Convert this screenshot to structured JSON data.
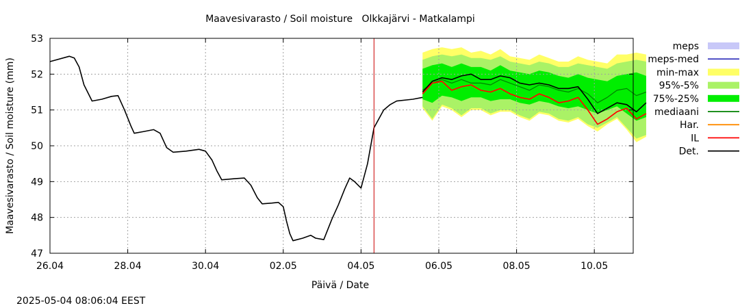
{
  "chart_data": {
    "type": "line",
    "title": "Maavesivarasto / Soil moisture   Olkkajärvi - Matkalampi",
    "xlabel": "Päivä / Date",
    "ylabel": "Maavesivarasto / Soil moisture (mm)",
    "timestamp": "2025-05-04 08:06:04 EEST",
    "x_unit": "day of month (April 26 – May 11, 2025)",
    "xlim": [
      "2025-04-26",
      "2025-05-11"
    ],
    "ylim": [
      47,
      53
    ],
    "y_ticks": [
      "47",
      "48",
      "49",
      "50",
      "51",
      "52",
      "53"
    ],
    "x_ticks": [
      {
        "date": "2025-04-26",
        "label": "26.04"
      },
      {
        "date": "2025-04-28",
        "label": "28.04"
      },
      {
        "date": "2025-04-30",
        "label": "30.04"
      },
      {
        "date": "2025-05-02",
        "label": "02.05"
      },
      {
        "date": "2025-05-04",
        "label": "04.05"
      },
      {
        "date": "2025-05-06",
        "label": "06.05"
      },
      {
        "date": "2025-05-08",
        "label": "08.05"
      },
      {
        "date": "2025-05-10",
        "label": "10.05"
      }
    ],
    "grid": true,
    "legend_position": "right",
    "forecast_start": "2025-05-04 08:00",
    "legend": [
      {
        "label": "meps",
        "kind": "band",
        "color": "#c8c8f8"
      },
      {
        "label": "meps-med",
        "kind": "line",
        "color": "#4040c0"
      },
      {
        "label": "min-max",
        "kind": "band",
        "color": "#ffff66"
      },
      {
        "label": "95%-5%",
        "kind": "band",
        "color": "#aaf266"
      },
      {
        "label": "75%-25%",
        "kind": "band",
        "color": "#00ee00"
      },
      {
        "label": "mediaani",
        "kind": "line",
        "color": "#008000"
      },
      {
        "label": "Har.",
        "kind": "line",
        "color": "#ff8c00"
      },
      {
        "label": "IL",
        "kind": "line",
        "color": "#ff0000"
      },
      {
        "label": "Det.",
        "kind": "line",
        "color": "#000000"
      }
    ],
    "observed": {
      "name": "Det.",
      "color": "#000000",
      "points": [
        [
          "2025-04-26 00:00",
          52.35
        ],
        [
          "2025-04-26 12:00",
          52.5
        ],
        [
          "2025-04-26 15:00",
          52.45
        ],
        [
          "2025-04-26 18:00",
          52.2
        ],
        [
          "2025-04-26 21:00",
          51.7
        ],
        [
          "2025-04-27 02:00",
          51.25
        ],
        [
          "2025-04-27 08:00",
          51.3
        ],
        [
          "2025-04-27 14:00",
          51.38
        ],
        [
          "2025-04-27 18:00",
          51.4
        ],
        [
          "2025-04-27 22:00",
          51.0
        ],
        [
          "2025-04-28 02:00",
          50.55
        ],
        [
          "2025-04-28 04:00",
          50.35
        ],
        [
          "2025-04-28 10:00",
          50.4
        ],
        [
          "2025-04-28 16:00",
          50.45
        ],
        [
          "2025-04-28 20:00",
          50.35
        ],
        [
          "2025-04-29 00:00",
          49.95
        ],
        [
          "2025-04-29 04:00",
          49.82
        ],
        [
          "2025-04-29 12:00",
          49.85
        ],
        [
          "2025-04-29 20:00",
          49.9
        ],
        [
          "2025-04-30 00:00",
          49.85
        ],
        [
          "2025-04-30 04:00",
          49.6
        ],
        [
          "2025-04-30 07:00",
          49.3
        ],
        [
          "2025-04-30 10:00",
          49.05
        ],
        [
          "2025-04-30 18:00",
          49.08
        ],
        [
          "2025-05-01 00:00",
          49.1
        ],
        [
          "2025-05-01 04:00",
          48.9
        ],
        [
          "2025-05-01 08:00",
          48.55
        ],
        [
          "2025-05-01 11:00",
          48.38
        ],
        [
          "2025-05-01 17:00",
          48.4
        ],
        [
          "2025-05-01 21:00",
          48.42
        ],
        [
          "2025-05-02 00:00",
          48.3
        ],
        [
          "2025-05-02 02:00",
          47.9
        ],
        [
          "2025-05-02 04:00",
          47.55
        ],
        [
          "2025-05-02 06:00",
          47.35
        ],
        [
          "2025-05-02 12:00",
          47.42
        ],
        [
          "2025-05-02 17:00",
          47.5
        ],
        [
          "2025-05-02 20:00",
          47.42
        ],
        [
          "2025-05-03 01:00",
          47.38
        ],
        [
          "2025-05-03 06:00",
          47.95
        ],
        [
          "2025-05-03 10:00",
          48.35
        ],
        [
          "2025-05-03 14:00",
          48.8
        ],
        [
          "2025-05-03 17:00",
          49.1
        ],
        [
          "2025-05-03 20:00",
          49.0
        ],
        [
          "2025-05-04 00:00",
          48.82
        ],
        [
          "2025-05-04 04:00",
          49.5
        ],
        [
          "2025-05-04 08:00",
          50.5
        ],
        [
          "2025-05-04 14:00",
          51.0
        ],
        [
          "2025-05-04 18:00",
          51.15
        ],
        [
          "2025-05-04 22:00",
          51.25
        ],
        [
          "2025-05-05 08:00",
          51.3
        ],
        [
          "2025-05-05 14:00",
          51.35
        ]
      ]
    },
    "forecast": {
      "x": [
        "2025-05-05 14:00",
        "2025-05-05 20:00",
        "2025-05-06 02:00",
        "2025-05-06 08:00",
        "2025-05-06 14:00",
        "2025-05-06 20:00",
        "2025-05-07 02:00",
        "2025-05-07 08:00",
        "2025-05-07 14:00",
        "2025-05-07 20:00",
        "2025-05-08 02:00",
        "2025-05-08 08:00",
        "2025-05-08 14:00",
        "2025-05-08 20:00",
        "2025-05-09 02:00",
        "2025-05-09 08:00",
        "2025-05-09 14:00",
        "2025-05-09 20:00",
        "2025-05-10 02:00",
        "2025-05-10 08:00",
        "2025-05-10 14:00",
        "2025-05-10 20:00",
        "2025-05-11 02:00",
        "2025-05-11 08:00"
      ],
      "bands": [
        {
          "name": "min-max",
          "color": "#ffff66",
          "lower": [
            51.05,
            50.7,
            51.1,
            51.0,
            50.8,
            51.0,
            51.0,
            50.85,
            50.95,
            50.95,
            50.8,
            50.7,
            50.9,
            50.85,
            50.7,
            50.65,
            50.75,
            50.55,
            50.4,
            50.6,
            50.75,
            50.45,
            50.1,
            50.25
          ],
          "upper": [
            52.6,
            52.7,
            52.75,
            52.7,
            52.75,
            52.6,
            52.65,
            52.55,
            52.7,
            52.5,
            52.45,
            52.4,
            52.55,
            52.45,
            52.35,
            52.35,
            52.5,
            52.4,
            52.35,
            52.3,
            52.55,
            52.55,
            52.6,
            52.55
          ]
        },
        {
          "name": "95%-5%",
          "color": "#aaf266",
          "lower": [
            51.1,
            50.75,
            51.15,
            51.05,
            50.85,
            51.05,
            51.05,
            50.9,
            51.0,
            51.0,
            50.85,
            50.75,
            50.95,
            50.9,
            50.75,
            50.7,
            50.8,
            50.6,
            50.5,
            50.65,
            50.8,
            50.5,
            50.2,
            50.3
          ],
          "upper": [
            52.4,
            52.5,
            52.55,
            52.5,
            52.55,
            52.45,
            52.45,
            52.4,
            52.5,
            52.35,
            52.3,
            52.25,
            52.35,
            52.3,
            52.2,
            52.2,
            52.3,
            52.25,
            52.2,
            52.15,
            52.3,
            52.35,
            52.4,
            52.35
          ]
        },
        {
          "name": "75%-25%",
          "color": "#00ee00",
          "lower": [
            51.3,
            51.2,
            51.4,
            51.35,
            51.25,
            51.35,
            51.35,
            51.25,
            51.3,
            51.3,
            51.2,
            51.15,
            51.25,
            51.2,
            51.1,
            51.05,
            51.1,
            51.0,
            50.9,
            51.0,
            51.1,
            50.9,
            50.7,
            50.8
          ],
          "upper": [
            52.15,
            52.25,
            52.3,
            52.2,
            52.3,
            52.2,
            52.2,
            52.1,
            52.25,
            52.1,
            52.05,
            52.0,
            52.1,
            52.05,
            51.95,
            51.9,
            52.0,
            51.9,
            51.85,
            51.8,
            51.95,
            52.0,
            52.05,
            51.95
          ]
        }
      ],
      "lines": [
        {
          "name": "mediaani",
          "color": "#008000",
          "values": [
            51.55,
            51.75,
            51.85,
            51.75,
            51.85,
            51.75,
            51.75,
            51.7,
            51.85,
            51.75,
            51.65,
            51.55,
            51.7,
            51.65,
            51.55,
            51.5,
            51.6,
            51.45,
            51.2,
            51.35,
            51.55,
            51.6,
            51.4,
            51.5
          ]
        },
        {
          "name": "Har.",
          "color": "#ff8c00",
          "values": [
            51.45,
            51.75,
            51.8,
            51.55,
            51.65,
            51.7,
            51.55,
            51.5,
            51.6,
            51.45,
            51.35,
            51.3,
            51.45,
            51.35,
            51.2,
            51.25,
            51.35,
            51.0,
            50.6,
            50.75,
            50.95,
            51.05,
            50.75,
            50.9
          ]
        },
        {
          "name": "IL",
          "color": "#ff0000",
          "values": [
            51.45,
            51.75,
            51.8,
            51.55,
            51.65,
            51.7,
            51.55,
            51.5,
            51.6,
            51.45,
            51.35,
            51.3,
            51.45,
            51.35,
            51.2,
            51.25,
            51.35,
            51.0,
            50.6,
            50.75,
            50.95,
            51.05,
            50.75,
            50.9
          ]
        },
        {
          "name": "Det.",
          "color": "#000000",
          "values": [
            51.5,
            51.8,
            51.9,
            51.85,
            51.95,
            52.0,
            51.85,
            51.85,
            51.95,
            51.9,
            51.75,
            51.7,
            51.75,
            51.7,
            51.6,
            51.6,
            51.65,
            51.3,
            50.9,
            51.05,
            51.2,
            51.15,
            50.95,
            51.2
          ]
        }
      ]
    }
  }
}
